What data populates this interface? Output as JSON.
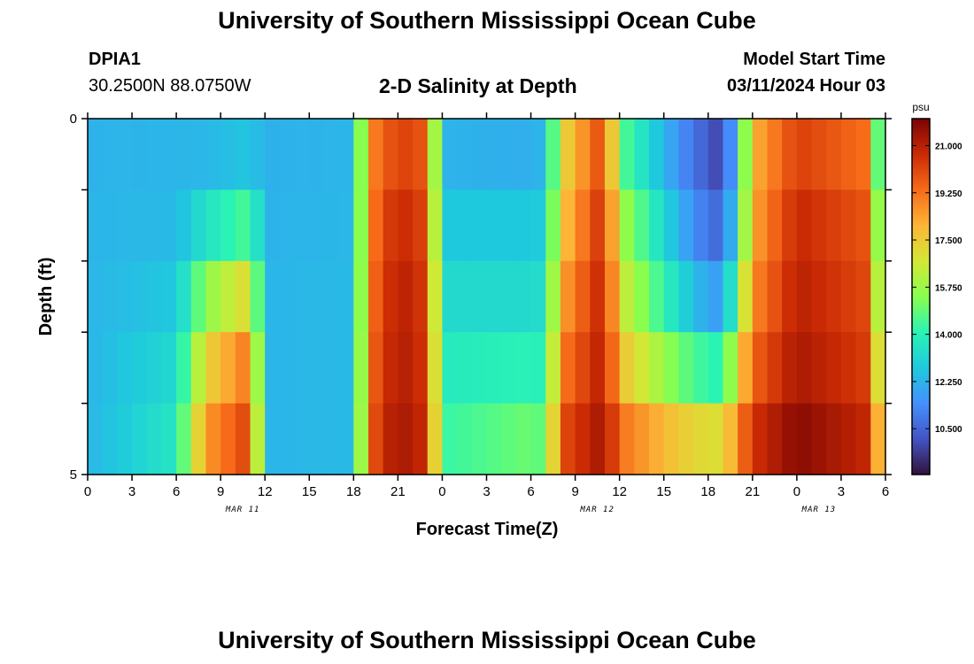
{
  "header": {
    "title": "University of Southern Mississippi Ocean Cube",
    "station_id": "DPIA1",
    "station_coords": "30.2500N  88.0750W",
    "plot_title": "2-D Salinity at Depth",
    "model_start_label": "Model Start Time",
    "model_start_value": "03/11/2024 Hour 03"
  },
  "footer": {
    "title": "University of Southern Mississippi Ocean Cube"
  },
  "chart_data": {
    "type": "heatmap",
    "title": "2-D Salinity at Depth",
    "xlabel": "Forecast Time(Z)",
    "ylabel": "Depth (ft)",
    "x_tick_labels": [
      "0",
      "3",
      "6",
      "9",
      "12",
      "15",
      "18",
      "21",
      "0",
      "3",
      "6",
      "9",
      "12",
      "15",
      "18",
      "21",
      "0",
      "3",
      "6"
    ],
    "y_tick_labels": [
      "0",
      "5"
    ],
    "ylim": [
      0,
      5
    ],
    "date_labels": [
      {
        "text": "MAR 11",
        "at_tick": 3.5
      },
      {
        "text": "MAR 12",
        "at_tick": 11.5
      },
      {
        "text": "MAR 13",
        "at_tick": 16.5
      }
    ],
    "colorbar": {
      "unit": "psu",
      "ticks": [
        "21.000",
        "19.250",
        "17.500",
        "15.750",
        "14.000",
        "12.250",
        "10.500"
      ],
      "min": 8.8,
      "max": 22.0,
      "colormap": [
        "#30123b",
        "#4454c4",
        "#4490fe",
        "#1fc9dd",
        "#2af4b4",
        "#88fe4e",
        "#d3e835",
        "#fcb536",
        "#f66b19",
        "#ca2a04",
        "#7a0403"
      ]
    },
    "time_hours": [
      0,
      6,
      8,
      11,
      12,
      18,
      19,
      20,
      22,
      23,
      24,
      30,
      31,
      32,
      35,
      36,
      40,
      42,
      43,
      44,
      45,
      48,
      53,
      54,
      55,
      57,
      58,
      61
    ],
    "depth_rows": [
      0,
      1,
      2,
      3,
      4,
      5
    ],
    "salinity_psu": [
      [
        12.2,
        12.3,
        12.2,
        12.2,
        12.2,
        12.3,
        18.5,
        19.5,
        20.0,
        19.5,
        12.0,
        11.8,
        12.2,
        17.0,
        20.0,
        14.2,
        11.0,
        10.0,
        9.2,
        13.0,
        18.0,
        20.0,
        19.0,
        10.0,
        9.3,
        9.0,
        9.0,
        9.2
      ],
      [
        12.3,
        12.3,
        12.5,
        13.2,
        12.2,
        12.3,
        18.5,
        20.0,
        20.5,
        19.5,
        12.5,
        12.5,
        12.6,
        17.0,
        20.5,
        15.5,
        12.0,
        10.5,
        10.2,
        13.0,
        18.0,
        20.5,
        19.5,
        11.0,
        10.3,
        10.2,
        10.2,
        10.3
      ],
      [
        12.3,
        12.5,
        14.5,
        16.0,
        12.3,
        12.4,
        18.5,
        20.5,
        21.0,
        20.0,
        13.0,
        13.0,
        13.2,
        18.0,
        21.0,
        16.5,
        12.5,
        11.0,
        11.0,
        14.0,
        18.5,
        21.0,
        20.0,
        12.0,
        11.3,
        11.2,
        11.2,
        11.3
      ],
      [
        12.3,
        13.0,
        16.5,
        18.5,
        12.3,
        12.4,
        18.8,
        20.5,
        21.0,
        20.0,
        13.5,
        13.5,
        13.5,
        18.5,
        21.0,
        17.0,
        14.0,
        12.8,
        12.5,
        16.0,
        19.0,
        21.0,
        20.0,
        13.0,
        12.5,
        12.5,
        12.5,
        12.5
      ],
      [
        12.3,
        13.5,
        18.0,
        20.0,
        12.3,
        12.4,
        19.0,
        20.8,
        21.2,
        20.3,
        14.0,
        14.5,
        14.3,
        19.5,
        21.3,
        18.5,
        16.0,
        15.5,
        15.5,
        18.0,
        20.0,
        21.5,
        20.5,
        14.5,
        14.0,
        14.0,
        13.8,
        13.5
      ],
      [
        12.3,
        13.8,
        19.0,
        20.5,
        12.3,
        12.4,
        19.3,
        21.0,
        21.3,
        20.5,
        14.5,
        15.5,
        15.0,
        20.3,
        21.5,
        20.0,
        19.0,
        18.5,
        18.5,
        19.5,
        21.0,
        22.0,
        21.0,
        16.5,
        16.0,
        15.0,
        14.5,
        14.0
      ]
    ]
  }
}
